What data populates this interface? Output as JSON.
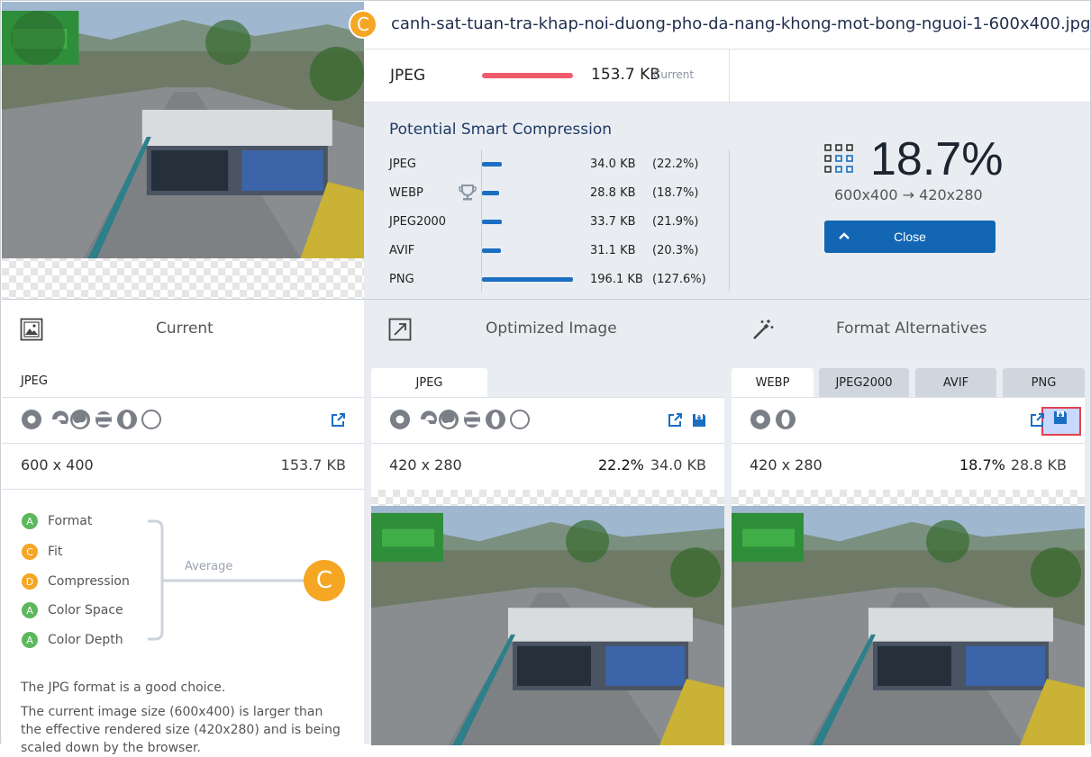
{
  "header": {
    "filename": "canh-sat-tuan-tra-khap-noi-duong-pho-da-nang-khong-mot-bong-nguoi-1-600x400.jpg",
    "grade": "C",
    "current_format": "JPEG",
    "current_size": "153.7 KB",
    "current_tag": "Current",
    "colors": {
      "current_bar": "#ef5c6c",
      "grade_badge": "#f5a623",
      "accent": "#1266b3"
    }
  },
  "smart": {
    "title": "Potential Smart Compression",
    "rows": [
      {
        "name": "JPEG",
        "size": "34.0 KB",
        "percent": "(22.2%)",
        "bar_fraction": 0.222
      },
      {
        "name": "WEBP",
        "size": "28.8 KB",
        "percent": "(18.7%)",
        "bar_fraction": 0.187,
        "best": true,
        "icon": "trophy-icon"
      },
      {
        "name": "JPEG2000",
        "size": "33.7 KB",
        "percent": "(21.9%)",
        "bar_fraction": 0.219
      },
      {
        "name": "AVIF",
        "size": "31.1 KB",
        "percent": "(20.3%)",
        "bar_fraction": 0.203
      },
      {
        "name": "PNG",
        "size": "196.1 KB",
        "percent": "(127.6%)",
        "bar_fraction": 1.0
      }
    ],
    "big_percent": "18.7%",
    "dims_from": "600x400",
    "dims_arrow": "→",
    "dims_to": "420x280",
    "close_label": "Close"
  },
  "current_panel": {
    "title": "Current",
    "format": "JPEG",
    "dimensions": "600 x 400",
    "size": "153.7 KB",
    "browsers": [
      "chrome-icon",
      "edge-icon",
      "firefox-icon",
      "ie-icon",
      "opera-icon",
      "safari-icon"
    ],
    "grades": [
      {
        "letter": "A",
        "label": "Format",
        "color": "#5cb85c"
      },
      {
        "letter": "C",
        "label": "Fit",
        "color": "#f5a623"
      },
      {
        "letter": "D",
        "label": "Compression",
        "color": "#f5a623"
      },
      {
        "letter": "A",
        "label": "Color Space",
        "color": "#5cb85c"
      },
      {
        "letter": "A",
        "label": "Color Depth",
        "color": "#5cb85c"
      }
    ],
    "average_label": "Average",
    "average_grade": "C",
    "note1": "The JPG format is a good choice.",
    "note2": "The current image size (600x400) is larger than the effective rendered size (420x280) and is being scaled down by the browser."
  },
  "optimized_panel": {
    "title": "Optimized Image",
    "tab": "JPEG",
    "dimensions": "420 x 280",
    "percent": "22.2%",
    "size": "34.0 KB",
    "browsers": [
      "chrome-icon",
      "edge-icon",
      "firefox-icon",
      "ie-icon",
      "opera-icon",
      "safari-icon"
    ]
  },
  "alternatives_panel": {
    "title": "Format Alternatives",
    "tabs": [
      "WEBP",
      "JPEG2000",
      "AVIF",
      "PNG"
    ],
    "dimensions": "420 x 280",
    "percent": "18.7%",
    "size": "28.8 KB",
    "browsers": [
      "chrome-icon",
      "opera-icon"
    ]
  }
}
